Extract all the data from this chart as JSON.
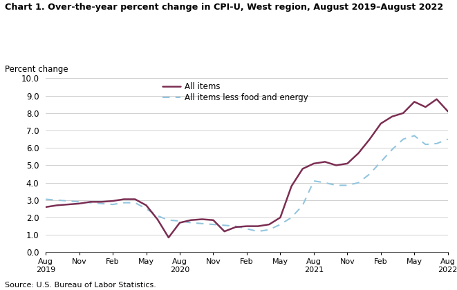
{
  "title": "Chart 1. Over-the-year percent change in CPI-U, West region, August 2019–August 2022",
  "ylabel": "Percent change",
  "source": "Source: U.S. Bureau of Labor Statistics.",
  "ylim": [
    0.0,
    10.0
  ],
  "yticks": [
    0.0,
    1.0,
    2.0,
    3.0,
    4.0,
    5.0,
    6.0,
    7.0,
    8.0,
    9.0,
    10.0
  ],
  "legend_labels": [
    "All items",
    "All items less food and energy"
  ],
  "all_items_color": "#7B2D52",
  "core_color": "#92C5DE",
  "x_labels": [
    "Aug\n2019",
    "Nov",
    "Feb",
    "May",
    "Aug\n2020",
    "Nov",
    "Feb",
    "May",
    "Aug\n2021",
    "Nov",
    "Feb",
    "May",
    "Aug\n2022"
  ],
  "x_tick_positions": [
    0,
    3,
    6,
    9,
    12,
    15,
    18,
    21,
    24,
    27,
    30,
    33,
    36
  ],
  "all_items": [
    2.6,
    2.7,
    2.75,
    2.8,
    2.9,
    2.9,
    2.95,
    3.05,
    3.05,
    2.7,
    1.9,
    0.85,
    1.7,
    1.85,
    1.9,
    1.85,
    1.2,
    1.45,
    1.5,
    1.5,
    1.6,
    2.0,
    3.8,
    4.8,
    5.1,
    5.2,
    5.0,
    5.1,
    5.7,
    6.5,
    7.4,
    7.8,
    8.0,
    8.65,
    8.35,
    8.8,
    8.1
  ],
  "core_items": [
    3.05,
    3.0,
    2.95,
    2.9,
    2.85,
    2.8,
    2.75,
    2.85,
    2.85,
    2.5,
    2.1,
    1.85,
    1.8,
    1.7,
    1.65,
    1.6,
    1.55,
    1.5,
    1.35,
    1.2,
    1.3,
    1.6,
    2.0,
    2.7,
    4.1,
    4.0,
    3.85,
    3.85,
    4.0,
    4.5,
    5.2,
    5.9,
    6.5,
    6.7,
    6.2,
    6.25,
    6.5
  ]
}
